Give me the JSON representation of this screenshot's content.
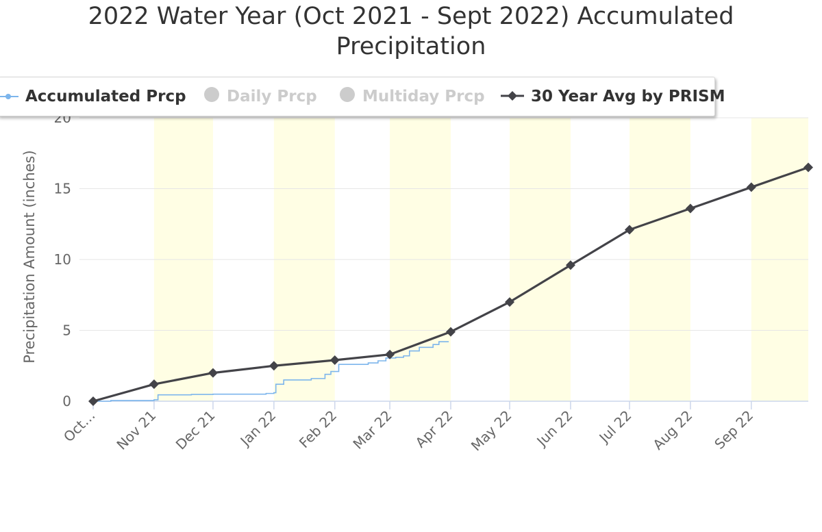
{
  "title_lines": [
    "2022 Water Year (Oct 2021 - Sept 2022) Accumulated",
    "Precipitation"
  ],
  "legend": [
    {
      "label": "Accumulated Prcp",
      "color": "#7cb5ec",
      "visible": true,
      "symbol": "line-circle"
    },
    {
      "label": "Daily Prcp",
      "color": "#cccccc",
      "visible": false,
      "symbol": "circle"
    },
    {
      "label": "Multiday Prcp",
      "color": "#cccccc",
      "visible": false,
      "symbol": "circle"
    },
    {
      "label": "30 Year Avg by PRISM",
      "color": "#434348",
      "visible": true,
      "symbol": "line-diamond"
    }
  ],
  "chart_data": {
    "type": "line",
    "title": "2022 Water Year (Oct 2021 - Sept 2022) Accumulated Precipitation",
    "ylabel": "Precipitation Amount (inches)",
    "xlabel": "",
    "ylim": [
      0,
      20
    ],
    "yticks": [
      0,
      5,
      10,
      15,
      20
    ],
    "xlim": [
      "2021-10-01",
      "2022-09-30"
    ],
    "xticks": [
      {
        "date": "2021-10-01",
        "label": "Oct…"
      },
      {
        "date": "2021-11-01",
        "label": "Nov 21"
      },
      {
        "date": "2021-12-01",
        "label": "Dec 21"
      },
      {
        "date": "2022-01-01",
        "label": "Jan 22"
      },
      {
        "date": "2022-02-01",
        "label": "Feb 22"
      },
      {
        "date": "2022-03-01",
        "label": "Mar 22"
      },
      {
        "date": "2022-04-01",
        "label": "Apr 22"
      },
      {
        "date": "2022-05-01",
        "label": "May 22"
      },
      {
        "date": "2022-06-01",
        "label": "Jun 22"
      },
      {
        "date": "2022-07-01",
        "label": "Jul 22"
      },
      {
        "date": "2022-08-01",
        "label": "Aug 22"
      },
      {
        "date": "2022-09-01",
        "label": "Sep 22"
      }
    ],
    "alternating_bands": [
      [
        "2021-11-01",
        "2021-12-01"
      ],
      [
        "2022-01-01",
        "2022-02-01"
      ],
      [
        "2022-03-01",
        "2022-04-01"
      ],
      [
        "2022-05-01",
        "2022-06-01"
      ],
      [
        "2022-07-01",
        "2022-08-01"
      ],
      [
        "2022-09-01",
        "2022-09-30"
      ]
    ],
    "band_color": "#fffee4",
    "grid": true,
    "legend_position": "top",
    "series": [
      {
        "name": "30 Year Avg by PRISM",
        "color": "#434348",
        "marker": "diamond",
        "points": [
          [
            "2021-10-01",
            0.0
          ],
          [
            "2021-11-01",
            1.2
          ],
          [
            "2021-12-01",
            2.0
          ],
          [
            "2022-01-01",
            2.5
          ],
          [
            "2022-02-01",
            2.9
          ],
          [
            "2022-03-01",
            3.3
          ],
          [
            "2022-04-01",
            4.9
          ],
          [
            "2022-05-01",
            7.0
          ],
          [
            "2022-06-01",
            9.6
          ],
          [
            "2022-07-01",
            12.1
          ],
          [
            "2022-08-01",
            13.6
          ],
          [
            "2022-09-01",
            15.1
          ],
          [
            "2022-09-30",
            16.5
          ]
        ]
      },
      {
        "name": "Accumulated Prcp",
        "color": "#7cb5ec",
        "marker": "none",
        "step": true,
        "points": [
          [
            "2021-10-01",
            0.0
          ],
          [
            "2021-10-10",
            0.05
          ],
          [
            "2021-11-01",
            0.1
          ],
          [
            "2021-11-03",
            0.45
          ],
          [
            "2021-11-20",
            0.48
          ],
          [
            "2021-12-01",
            0.5
          ],
          [
            "2021-12-28",
            0.55
          ],
          [
            "2022-01-01",
            0.6
          ],
          [
            "2022-01-02",
            1.2
          ],
          [
            "2022-01-06",
            1.5
          ],
          [
            "2022-01-20",
            1.6
          ],
          [
            "2022-01-27",
            1.9
          ],
          [
            "2022-01-30",
            2.1
          ],
          [
            "2022-02-03",
            2.6
          ],
          [
            "2022-02-18",
            2.7
          ],
          [
            "2022-02-23",
            2.85
          ],
          [
            "2022-02-27",
            3.05
          ],
          [
            "2022-03-04",
            3.1
          ],
          [
            "2022-03-08",
            3.2
          ],
          [
            "2022-03-11",
            3.55
          ],
          [
            "2022-03-16",
            3.8
          ],
          [
            "2022-03-23",
            4.0
          ],
          [
            "2022-03-26",
            4.2
          ],
          [
            "2022-03-31",
            4.2
          ]
        ]
      }
    ]
  }
}
